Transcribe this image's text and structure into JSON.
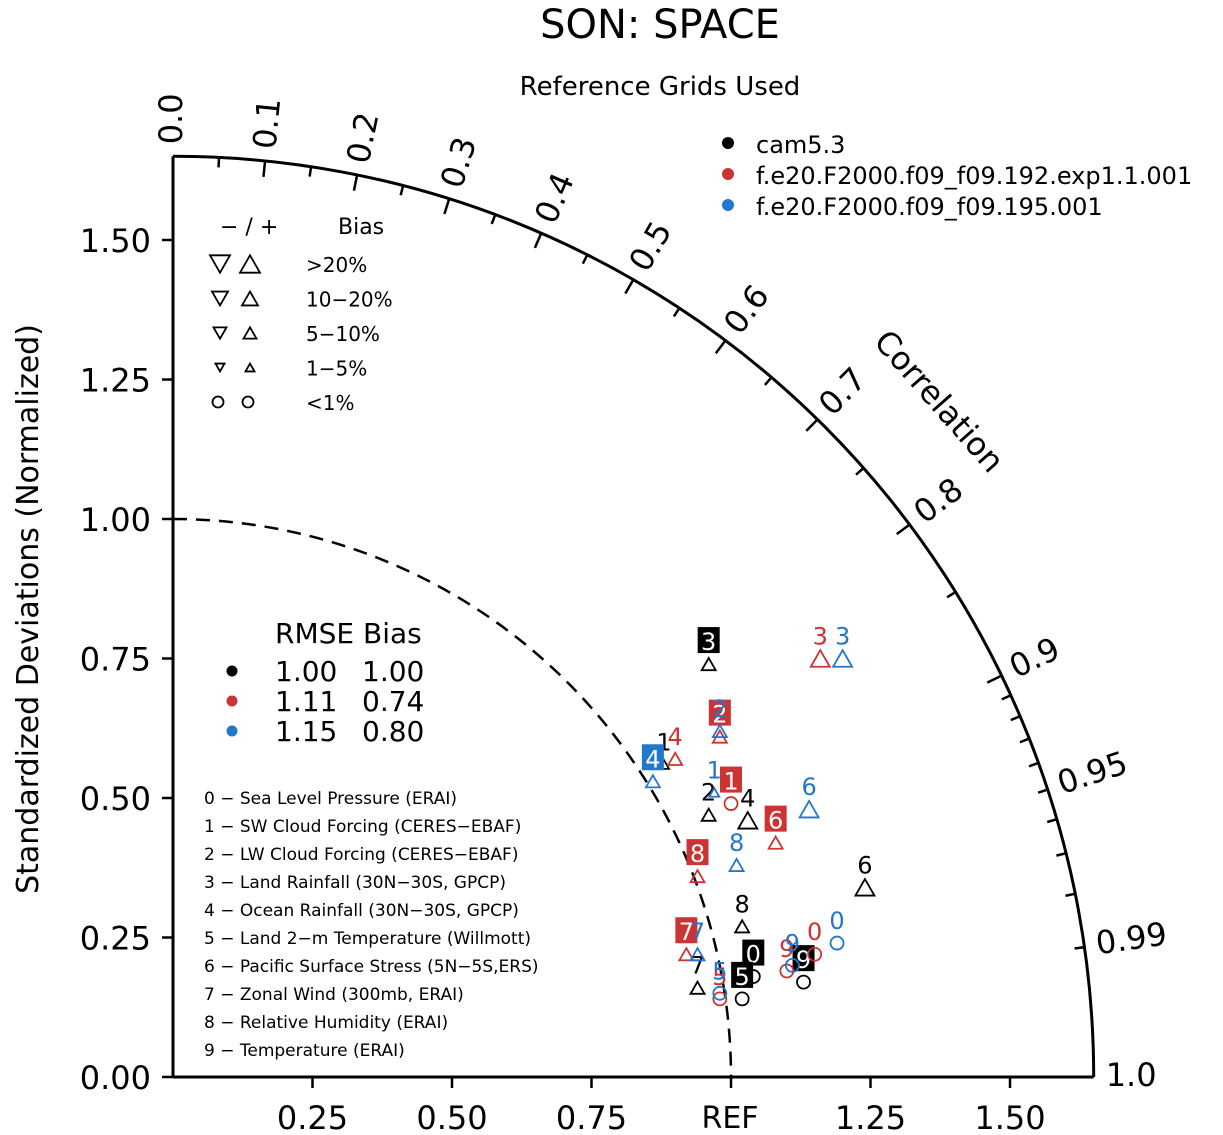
{
  "chart_data": {
    "type": "scatter",
    "subtype": "taylor-diagram",
    "title": "SON: SPACE",
    "subtitle": "Reference Grids Used",
    "ylabel": "Standardized Deviations (Normalized)",
    "angular_label": "Correlation",
    "ref_label": "REF",
    "x_ticks": [
      "0.25",
      "0.50",
      "0.75",
      "1.25",
      "1.50"
    ],
    "y_ticks": [
      "0.00",
      "0.25",
      "0.50",
      "0.75",
      "1.00",
      "1.25",
      "1.50"
    ],
    "corr_ticks": [
      "0.0",
      "0.1",
      "0.2",
      "0.3",
      "0.4",
      "0.5",
      "0.6",
      "0.7",
      "0.8",
      "0.9",
      "0.95",
      "0.99",
      "1.0"
    ],
    "std_max": 1.65,
    "ref_std": 1.0,
    "grid": false,
    "legend_placement": "top-right",
    "models": [
      {
        "name": "cam5.3",
        "color": "#000000"
      },
      {
        "name": "f.e20.F2000.f09_f09.192.exp1.1.001",
        "color": "#cc3333"
      },
      {
        "name": "f.e20.F2000.f09_f09.195.001",
        "color": "#2277cc"
      }
    ],
    "bias_legend": {
      "header_sign": "− / +",
      "header_bias": "Bias",
      "rows": [
        {
          "label": ">20%",
          "size": "xl"
        },
        {
          "label": "10−20%",
          "size": "l"
        },
        {
          "label": "5−10%",
          "size": "m"
        },
        {
          "label": "1−5%",
          "size": "s"
        },
        {
          "label": "<1%",
          "size": "circle"
        }
      ]
    },
    "summary": {
      "header": "RMSE Bias",
      "rows": [
        {
          "rmse": "1.00",
          "bias": "1.00",
          "color": "#000000"
        },
        {
          "rmse": "1.11",
          "bias": "0.74",
          "color": "#cc3333"
        },
        {
          "rmse": "1.15",
          "bias": "0.80",
          "color": "#2277cc"
        }
      ]
    },
    "variables": [
      "0 − Sea Level Pressure (ERAI)",
      "1 − SW Cloud Forcing (CERES−EBAF)",
      "2 − LW Cloud Forcing (CERES−EBAF)",
      "3 − Land Rainfall (30N−30S, GPCP)",
      "4 − Ocean Rainfall (30N−30S, GPCP)",
      "5 − Land 2−m Temperature (Willmott)",
      "6 − Pacific Surface Stress (5N−5S,ERS)",
      "7 − Zonal Wind (300mb, ERAI)",
      "8 − Relative Humidity (ERAI)",
      "9 − Temperature (ERAI)"
    ],
    "points": [
      {
        "model": 0,
        "label": "0",
        "x": 1.04,
        "y": 0.18,
        "marker": "circle",
        "highlight": true
      },
      {
        "model": 0,
        "label": "1",
        "x": 0.88,
        "y": 0.56,
        "marker": "up-s"
      },
      {
        "model": 0,
        "label": "2",
        "x": 0.96,
        "y": 0.47,
        "marker": "up-m"
      },
      {
        "model": 0,
        "label": "3",
        "x": 0.96,
        "y": 0.74,
        "marker": "up-m",
        "highlight": true
      },
      {
        "model": 0,
        "label": "4",
        "x": 1.03,
        "y": 0.46,
        "marker": "up-l"
      },
      {
        "model": 0,
        "label": "5",
        "x": 1.02,
        "y": 0.14,
        "marker": "circle",
        "highlight": true
      },
      {
        "model": 0,
        "label": "6",
        "x": 1.24,
        "y": 0.34,
        "marker": "up-l"
      },
      {
        "model": 0,
        "label": "7",
        "x": 0.94,
        "y": 0.16,
        "marker": "up-m"
      },
      {
        "model": 0,
        "label": "8",
        "x": 1.02,
        "y": 0.27,
        "marker": "up-m"
      },
      {
        "model": 0,
        "label": "9",
        "x": 1.13,
        "y": 0.17,
        "marker": "circle",
        "highlight": true
      },
      {
        "model": 1,
        "label": "0",
        "x": 1.15,
        "y": 0.22,
        "marker": "circle"
      },
      {
        "model": 1,
        "label": "1",
        "x": 1.0,
        "y": 0.49,
        "marker": "circle",
        "highlight": true
      },
      {
        "model": 1,
        "label": "2",
        "x": 0.98,
        "y": 0.61,
        "marker": "up-m",
        "highlight": true
      },
      {
        "model": 1,
        "label": "3",
        "x": 1.16,
        "y": 0.75,
        "marker": "up-l"
      },
      {
        "model": 1,
        "label": "4",
        "x": 0.9,
        "y": 0.57,
        "marker": "up-m"
      },
      {
        "model": 1,
        "label": "5",
        "x": 0.98,
        "y": 0.14,
        "marker": "circle"
      },
      {
        "model": 1,
        "label": "6",
        "x": 1.08,
        "y": 0.42,
        "marker": "up-m",
        "highlight": true
      },
      {
        "model": 1,
        "label": "7",
        "x": 0.92,
        "y": 0.22,
        "marker": "up-m",
        "highlight": true
      },
      {
        "model": 1,
        "label": "8",
        "x": 0.94,
        "y": 0.36,
        "marker": "up-m",
        "highlight": true
      },
      {
        "model": 1,
        "label": "9",
        "x": 1.1,
        "y": 0.19,
        "marker": "circle"
      },
      {
        "model": 2,
        "label": "0",
        "x": 1.19,
        "y": 0.24,
        "marker": "circle"
      },
      {
        "model": 2,
        "label": "1",
        "x": 0.97,
        "y": 0.51,
        "marker": "up-s"
      },
      {
        "model": 2,
        "label": "2",
        "x": 0.98,
        "y": 0.62,
        "marker": "up-m"
      },
      {
        "model": 2,
        "label": "3",
        "x": 1.2,
        "y": 0.75,
        "marker": "up-l"
      },
      {
        "model": 2,
        "label": "4",
        "x": 0.86,
        "y": 0.53,
        "marker": "up-m",
        "highlight": true
      },
      {
        "model": 2,
        "label": "5",
        "x": 0.98,
        "y": 0.15,
        "marker": "circle"
      },
      {
        "model": 2,
        "label": "6",
        "x": 1.14,
        "y": 0.48,
        "marker": "up-l"
      },
      {
        "model": 2,
        "label": "7",
        "x": 0.94,
        "y": 0.22,
        "marker": "up-m"
      },
      {
        "model": 2,
        "label": "8",
        "x": 1.01,
        "y": 0.38,
        "marker": "up-m"
      },
      {
        "model": 2,
        "label": "9",
        "x": 1.11,
        "y": 0.2,
        "marker": "circle"
      }
    ]
  }
}
